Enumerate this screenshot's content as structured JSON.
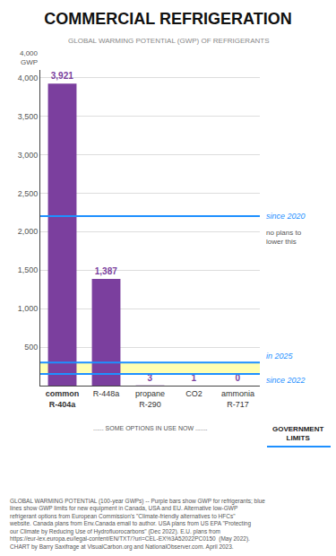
{
  "chart_data": {
    "type": "bar",
    "title": "COMMERCIAL REFRIGERATION",
    "subtitle": "GLOBAL WARMING POTENTIAL (GWP) OF REFRIGERANTS",
    "categories": [
      "common\nR-404a",
      "R-448a",
      "propane\nR-290",
      "CO2",
      "ammonia\nR-717"
    ],
    "values": [
      3921,
      1387,
      3,
      1,
      0
    ],
    "value_labels": [
      "3,921",
      "1,387",
      "3",
      "1",
      "0"
    ],
    "data_labels": true,
    "color": "#7B3F9E",
    "ylim": [
      0,
      4100
    ],
    "yticks": [
      500,
      {
        "value": 1000,
        "label": "1,000"
      },
      {
        "value": 1500,
        "label": "1,500"
      },
      {
        "value": 2000,
        "label": "2,000"
      },
      {
        "value": 2500,
        "label": "2,500"
      },
      {
        "value": 3000,
        "label": "3,000"
      },
      {
        "value": 3500,
        "label": "3,500"
      },
      {
        "value": 4000,
        "label": "4,000"
      }
    ],
    "grid": true,
    "limits": [
      {
        "value": 2200,
        "label": "since 2020",
        "color": "#1E90FF",
        "note": "no plans to\nlower this"
      },
      {
        "value": 300,
        "label": "in 2025",
        "color": "#1E90FF",
        "highlight": true
      },
      {
        "value": 150,
        "label": "since 2022",
        "color": "#1E90FF",
        "highlight": true
      }
    ],
    "axis_note": "4,000\nGWP",
    "options_label": "...... SOME OPTIONS IN USE NOW .......",
    "limits_label": "GOVERNMENT\nLIMITS",
    "footer": "GLOBAL WARMING POTENTIAL (100-year GWPs) -- Purple bars show GWP for refrigerants; blue lines show GWP limits for new equipment in Canada, USA and EU. Alternative low-GWP refrigerant options from European Commission's \"Climate-friendly alternatives to HFCs\" website. Canada plans from Env.Canada email to author. USA plans from US EPA \"Protecting our Climate by Reducing Use of Hydrofluorocarbons\" (Dec 2022). E.U. plans from https://eur-lex.europa.eu/legal-content/EN/TXT/?uri=CEL-EX%3A52022PC0150  (May 2022). CHART by Barry Saxifrage at VisualCarbon.org and NationalObserver.com. April 2023."
  }
}
